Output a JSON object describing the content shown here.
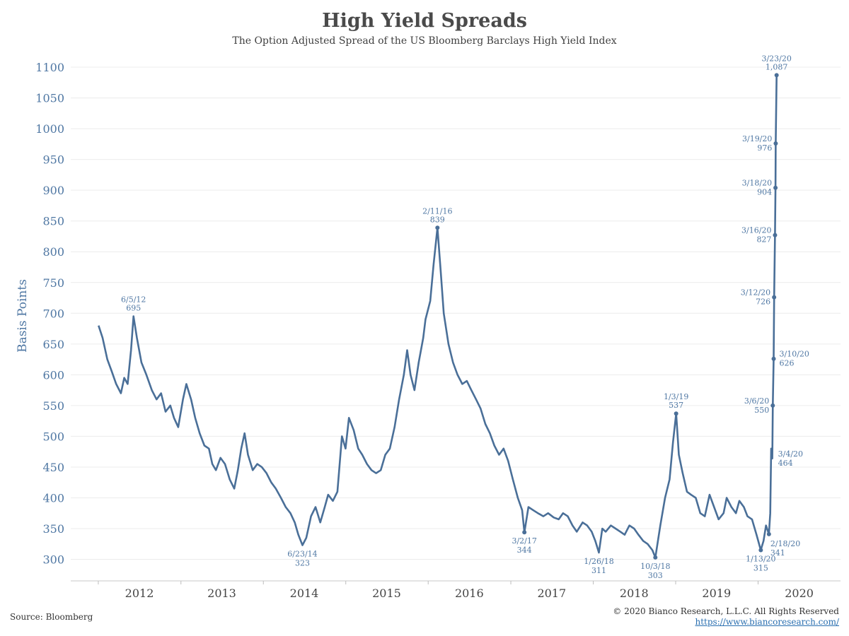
{
  "header": {
    "title": "High Yield Spreads",
    "subtitle": "The Option Adjusted Spread of the US Bloomberg Barclays High Yield Index"
  },
  "footer": {
    "source": "Source: Bloomberg",
    "copyright": "© 2020 Bianco Research, L.L.C. All Rights Reserved",
    "website": "https://www.biancoresearch.com/"
  },
  "colors": {
    "line": "#4a6f98",
    "axis_text": "#4f77a3",
    "grid": "#ececec",
    "annotation": "#4f77a3"
  },
  "chart_data": {
    "type": "line",
    "title": "High Yield Spreads",
    "subtitle": "The Option Adjusted Spread of the US Bloomberg Barclays High Yield Index",
    "xlabel": "",
    "ylabel": "Basis Points",
    "ylim": [
      265,
      1115
    ],
    "yticks": [
      300,
      350,
      400,
      450,
      500,
      550,
      600,
      650,
      700,
      750,
      800,
      850,
      900,
      950,
      1000,
      1050,
      1100
    ],
    "xlim": [
      "2011-09-01",
      "2020-12-31"
    ],
    "xticks": [
      "2012",
      "2013",
      "2014",
      "2015",
      "2016",
      "2017",
      "2018",
      "2019",
      "2020"
    ],
    "grid": "horizontal",
    "legend": "none",
    "series": [
      {
        "points": [
          [
            "2012-01-02",
            680
          ],
          [
            "2012-01-20",
            660
          ],
          [
            "2012-02-10",
            625
          ],
          [
            "2012-03-01",
            605
          ],
          [
            "2012-03-20",
            585
          ],
          [
            "2012-04-10",
            570
          ],
          [
            "2012-04-25",
            595
          ],
          [
            "2012-05-10",
            585
          ],
          [
            "2012-05-25",
            640
          ],
          [
            "2012-06-05",
            695
          ],
          [
            "2012-06-20",
            660
          ],
          [
            "2012-07-10",
            620
          ],
          [
            "2012-08-01",
            600
          ],
          [
            "2012-08-25",
            575
          ],
          [
            "2012-09-15",
            560
          ],
          [
            "2012-10-05",
            570
          ],
          [
            "2012-10-25",
            540
          ],
          [
            "2012-11-15",
            550
          ],
          [
            "2012-12-01",
            530
          ],
          [
            "2012-12-20",
            515
          ],
          [
            "2013-01-10",
            560
          ],
          [
            "2013-01-25",
            585
          ],
          [
            "2013-02-15",
            560
          ],
          [
            "2013-03-05",
            530
          ],
          [
            "2013-03-25",
            505
          ],
          [
            "2013-04-15",
            485
          ],
          [
            "2013-05-05",
            480
          ],
          [
            "2013-05-20",
            455
          ],
          [
            "2013-06-05",
            445
          ],
          [
            "2013-06-25",
            465
          ],
          [
            "2013-07-15",
            455
          ],
          [
            "2013-08-05",
            430
          ],
          [
            "2013-08-25",
            415
          ],
          [
            "2013-09-10",
            445
          ],
          [
            "2013-09-25",
            480
          ],
          [
            "2013-10-10",
            505
          ],
          [
            "2013-10-25",
            470
          ],
          [
            "2013-11-15",
            445
          ],
          [
            "2013-12-05",
            455
          ],
          [
            "2013-12-25",
            450
          ],
          [
            "2014-01-15",
            440
          ],
          [
            "2014-02-05",
            425
          ],
          [
            "2014-02-25",
            415
          ],
          [
            "2014-03-20",
            400
          ],
          [
            "2014-04-10",
            385
          ],
          [
            "2014-05-01",
            375
          ],
          [
            "2014-05-20",
            360
          ],
          [
            "2014-06-05",
            340
          ],
          [
            "2014-06-23",
            323
          ],
          [
            "2014-07-10",
            335
          ],
          [
            "2014-07-31",
            370
          ],
          [
            "2014-08-20",
            385
          ],
          [
            "2014-09-10",
            360
          ],
          [
            "2014-09-30",
            385
          ],
          [
            "2014-10-15",
            405
          ],
          [
            "2014-11-05",
            395
          ],
          [
            "2014-11-25",
            410
          ],
          [
            "2014-12-15",
            500
          ],
          [
            "2014-12-31",
            480
          ],
          [
            "2015-01-15",
            530
          ],
          [
            "2015-02-05",
            510
          ],
          [
            "2015-02-25",
            480
          ],
          [
            "2015-03-15",
            470
          ],
          [
            "2015-04-05",
            455
          ],
          [
            "2015-04-25",
            445
          ],
          [
            "2015-05-15",
            440
          ],
          [
            "2015-06-05",
            445
          ],
          [
            "2015-06-25",
            470
          ],
          [
            "2015-07-15",
            480
          ],
          [
            "2015-08-05",
            515
          ],
          [
            "2015-08-25",
            560
          ],
          [
            "2015-09-15",
            600
          ],
          [
            "2015-09-30",
            640
          ],
          [
            "2015-10-15",
            600
          ],
          [
            "2015-11-01",
            575
          ],
          [
            "2015-11-20",
            620
          ],
          [
            "2015-12-10",
            660
          ],
          [
            "2015-12-20",
            690
          ],
          [
            "2016-01-10",
            720
          ],
          [
            "2016-01-25",
            780
          ],
          [
            "2016-02-11",
            839
          ],
          [
            "2016-02-25",
            770
          ],
          [
            "2016-03-10",
            700
          ],
          [
            "2016-03-31",
            650
          ],
          [
            "2016-04-20",
            620
          ],
          [
            "2016-05-10",
            600
          ],
          [
            "2016-05-31",
            585
          ],
          [
            "2016-06-20",
            590
          ],
          [
            "2016-07-10",
            575
          ],
          [
            "2016-07-31",
            560
          ],
          [
            "2016-08-20",
            545
          ],
          [
            "2016-09-10",
            520
          ],
          [
            "2016-09-30",
            505
          ],
          [
            "2016-10-20",
            485
          ],
          [
            "2016-11-10",
            470
          ],
          [
            "2016-11-30",
            480
          ],
          [
            "2016-12-20",
            460
          ],
          [
            "2017-01-10",
            430
          ],
          [
            "2017-02-01",
            400
          ],
          [
            "2017-02-20",
            380
          ],
          [
            "2017-03-02",
            344
          ],
          [
            "2017-03-20",
            385
          ],
          [
            "2017-04-10",
            380
          ],
          [
            "2017-05-01",
            375
          ],
          [
            "2017-05-25",
            370
          ],
          [
            "2017-06-15",
            375
          ],
          [
            "2017-07-10",
            368
          ],
          [
            "2017-08-01",
            365
          ],
          [
            "2017-08-20",
            375
          ],
          [
            "2017-09-10",
            370
          ],
          [
            "2017-10-01",
            355
          ],
          [
            "2017-10-20",
            345
          ],
          [
            "2017-11-15",
            360
          ],
          [
            "2017-12-05",
            355
          ],
          [
            "2017-12-25",
            345
          ],
          [
            "2018-01-10",
            330
          ],
          [
            "2018-01-26",
            311
          ],
          [
            "2018-02-10",
            350
          ],
          [
            "2018-02-25",
            345
          ],
          [
            "2018-03-20",
            355
          ],
          [
            "2018-04-10",
            350
          ],
          [
            "2018-05-01",
            345
          ],
          [
            "2018-05-20",
            340
          ],
          [
            "2018-06-10",
            355
          ],
          [
            "2018-07-01",
            350
          ],
          [
            "2018-07-20",
            340
          ],
          [
            "2018-08-10",
            330
          ],
          [
            "2018-08-30",
            325
          ],
          [
            "2018-09-20",
            315
          ],
          [
            "2018-10-03",
            303
          ],
          [
            "2018-10-25",
            355
          ],
          [
            "2018-11-15",
            400
          ],
          [
            "2018-12-05",
            430
          ],
          [
            "2018-12-20",
            490
          ],
          [
            "2019-01-03",
            537
          ],
          [
            "2019-01-15",
            470
          ],
          [
            "2019-02-01",
            440
          ],
          [
            "2019-02-20",
            410
          ],
          [
            "2019-03-10",
            405
          ],
          [
            "2019-03-31",
            400
          ],
          [
            "2019-04-20",
            375
          ],
          [
            "2019-05-10",
            370
          ],
          [
            "2019-05-31",
            405
          ],
          [
            "2019-06-20",
            385
          ],
          [
            "2019-07-10",
            365
          ],
          [
            "2019-08-01",
            375
          ],
          [
            "2019-08-15",
            400
          ],
          [
            "2019-09-05",
            385
          ],
          [
            "2019-09-25",
            375
          ],
          [
            "2019-10-10",
            395
          ],
          [
            "2019-10-30",
            385
          ],
          [
            "2019-11-15",
            370
          ],
          [
            "2019-12-05",
            365
          ],
          [
            "2019-12-25",
            340
          ],
          [
            "2020-01-13",
            315
          ],
          [
            "2020-01-25",
            330
          ],
          [
            "2020-02-05",
            355
          ],
          [
            "2020-02-18",
            341
          ],
          [
            "2020-02-24",
            375
          ],
          [
            "2020-02-28",
            480
          ],
          [
            "2020-03-04",
            464
          ],
          [
            "2020-03-06",
            550
          ],
          [
            "2020-03-10",
            626
          ],
          [
            "2020-03-12",
            726
          ],
          [
            "2020-03-16",
            827
          ],
          [
            "2020-03-18",
            904
          ],
          [
            "2020-03-19",
            976
          ],
          [
            "2020-03-23",
            1087
          ]
        ]
      }
    ],
    "annotations": [
      {
        "date": "2012-06-05",
        "value": 695,
        "date_label": "6/5/12",
        "value_label": "695",
        "pos": "above",
        "marker": false
      },
      {
        "date": "2014-06-23",
        "value": 323,
        "date_label": "6/23/14",
        "value_label": "323",
        "pos": "below",
        "marker": false
      },
      {
        "date": "2016-02-11",
        "value": 839,
        "date_label": "2/11/16",
        "value_label": "839",
        "pos": "above",
        "marker": true
      },
      {
        "date": "2017-03-02",
        "value": 344,
        "date_label": "3/2/17",
        "value_label": "344",
        "pos": "below",
        "marker": true
      },
      {
        "date": "2018-01-26",
        "value": 311,
        "date_label": "1/26/18",
        "value_label": "311",
        "pos": "below",
        "marker": false
      },
      {
        "date": "2018-10-03",
        "value": 303,
        "date_label": "10/3/18",
        "value_label": "303",
        "pos": "below",
        "marker": true
      },
      {
        "date": "2019-01-03",
        "value": 537,
        "date_label": "1/3/19",
        "value_label": "537",
        "pos": "above",
        "marker": true
      },
      {
        "date": "2020-01-13",
        "value": 315,
        "date_label": "1/13/20",
        "value_label": "315",
        "pos": "below",
        "marker": true
      },
      {
        "date": "2020-02-18",
        "value": 341,
        "date_label": "2/18/20",
        "value_label": "341",
        "pos": "below-right",
        "marker": true
      },
      {
        "date": "2020-03-04",
        "value": 464,
        "date_label": "3/4/20",
        "value_label": "464",
        "pos": "right",
        "marker": false
      },
      {
        "date": "2020-03-06",
        "value": 550,
        "date_label": "3/6/20",
        "value_label": "550",
        "pos": "left",
        "marker": true
      },
      {
        "date": "2020-03-10",
        "value": 626,
        "date_label": "3/10/20",
        "value_label": "626",
        "pos": "right",
        "marker": true
      },
      {
        "date": "2020-03-12",
        "value": 726,
        "date_label": "3/12/20",
        "value_label": "726",
        "pos": "left",
        "marker": true
      },
      {
        "date": "2020-03-16",
        "value": 827,
        "date_label": "3/16/20",
        "value_label": "827",
        "pos": "left",
        "marker": true
      },
      {
        "date": "2020-03-18",
        "value": 904,
        "date_label": "3/18/20",
        "value_label": "904",
        "pos": "left",
        "marker": true
      },
      {
        "date": "2020-03-19",
        "value": 976,
        "date_label": "3/19/20",
        "value_label": "976",
        "pos": "left",
        "marker": true
      },
      {
        "date": "2020-03-23",
        "value": 1087,
        "date_label": "3/23/20",
        "value_label": "1,087",
        "pos": "above",
        "marker": true
      }
    ]
  }
}
